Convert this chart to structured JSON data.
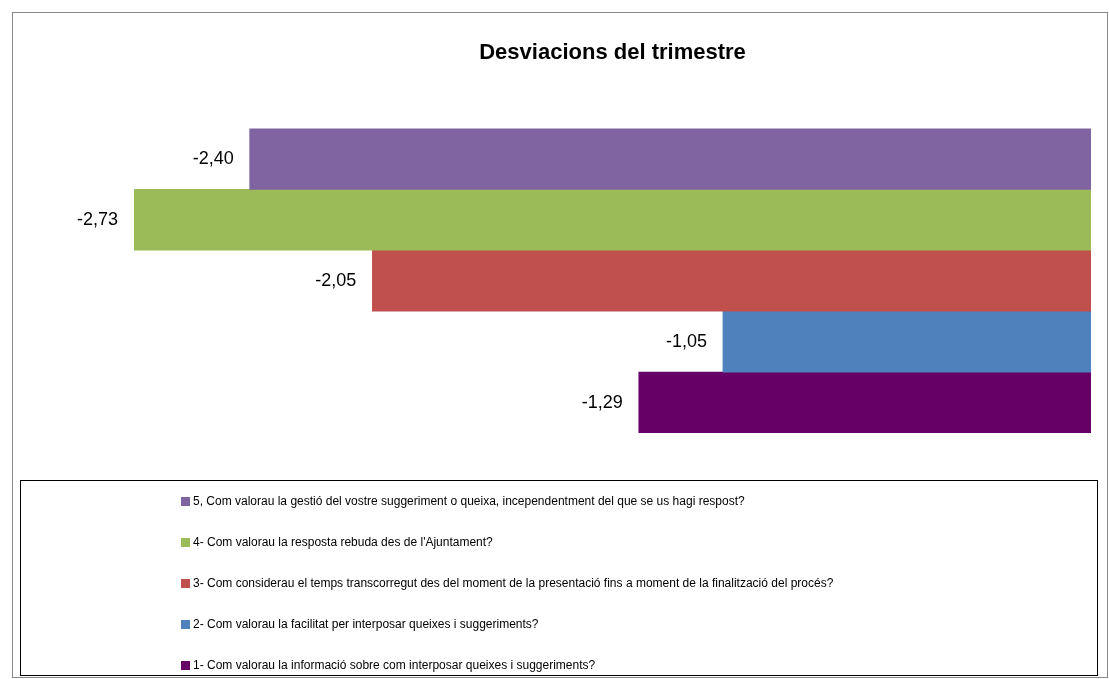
{
  "chart_data": {
    "type": "bar",
    "orientation": "horizontal",
    "title": "Desviacions del trimestre",
    "categories": [
      null
    ],
    "legend": "bottom",
    "series": [
      {
        "name": "5, Com valorau la gestió del vostre suggeriment o queixa, incependentment del que se us hagi respost?",
        "color": "#8064a2",
        "values": [
          -2.4
        ],
        "value_labels": [
          "-2,40"
        ]
      },
      {
        "name": "4- Com valorau la resposta rebuda des de l'Ajuntament?",
        "color": "#9bbb59",
        "values": [
          -2.73
        ],
        "value_labels": [
          "-2,73"
        ]
      },
      {
        "name": "3- Com considerau el temps transcorregut des del moment de la presentació fins a moment de la finalització del procés?",
        "color": "#c0504d",
        "values": [
          -2.05
        ],
        "value_labels": [
          "-2,05"
        ]
      },
      {
        "name": "2- Com valorau la facilitat per interposar queixes i suggeriments?",
        "color": "#4f81bd",
        "values": [
          -1.05
        ],
        "value_labels": [
          "-1,05"
        ]
      },
      {
        "name": "1- Com valorau la informació sobre com interposar queixes i suggeriments?",
        "color": "#660066",
        "values": [
          -1.29
        ],
        "value_labels": [
          "-1,29"
        ]
      }
    ]
  }
}
